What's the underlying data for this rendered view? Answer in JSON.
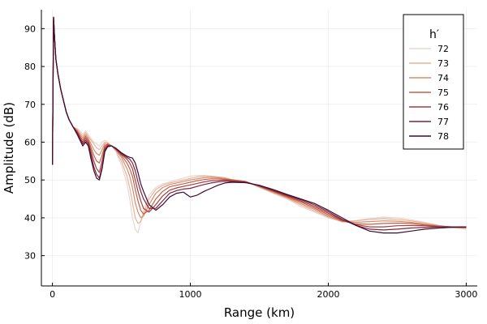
{
  "chart_data": {
    "type": "line",
    "xlabel": "Range (km)",
    "ylabel": "Amplitude (dB)",
    "xlim": [
      -80,
      3080
    ],
    "ylim": [
      22,
      95
    ],
    "xticks": [
      0,
      1000,
      2000,
      3000
    ],
    "yticks": [
      30,
      40,
      50,
      60,
      70,
      80,
      90
    ],
    "grid": true,
    "legend": {
      "title": "h′",
      "placement": "top-right"
    },
    "series": [
      {
        "name": "72",
        "color": "#e8d7cf",
        "x": [
          0,
          8,
          15,
          25,
          40,
          60,
          80,
          100,
          120,
          150,
          180,
          200,
          220,
          240,
          260,
          280,
          300,
          320,
          340,
          360,
          380,
          400,
          430,
          460,
          500,
          540,
          560,
          580,
          600,
          620,
          640,
          660,
          700,
          750,
          800,
          850,
          900,
          950,
          1000,
          1050,
          1100,
          1150,
          1200,
          1250,
          1300,
          1400,
          1500,
          1600,
          1700,
          1800,
          1900,
          2000,
          2100,
          2200,
          2300,
          2400,
          2500,
          2600,
          2700,
          2800,
          2900,
          3000
        ],
        "y": [
          54,
          93,
          88,
          82,
          78,
          74,
          71,
          68,
          66,
          64,
          63.5,
          63,
          62,
          63,
          62,
          61,
          60,
          59.5,
          59,
          60,
          60.5,
          60,
          59,
          57.5,
          54,
          49,
          45,
          40,
          37,
          36,
          39,
          42,
          46,
          48,
          49,
          49.5,
          50,
          50.5,
          51,
          51.2,
          51.2,
          51,
          50.8,
          50.5,
          50,
          49.5,
          48,
          46.5,
          45,
          43,
          41.5,
          40,
          39,
          39.3,
          39.8,
          40.2,
          40,
          39.5,
          38.8,
          38,
          37.4,
          37
        ]
      },
      {
        "name": "73",
        "color": "#e6b49c",
        "x": [
          0,
          8,
          15,
          25,
          40,
          60,
          80,
          100,
          120,
          150,
          180,
          200,
          220,
          240,
          260,
          280,
          300,
          320,
          340,
          360,
          380,
          400,
          430,
          460,
          500,
          540,
          560,
          580,
          600,
          620,
          640,
          660,
          700,
          750,
          800,
          850,
          900,
          950,
          1000,
          1050,
          1100,
          1150,
          1200,
          1250,
          1300,
          1400,
          1500,
          1600,
          1700,
          1800,
          1900,
          2000,
          2100,
          2200,
          2300,
          2400,
          2500,
          2600,
          2700,
          2800,
          2900,
          3000
        ],
        "y": [
          54,
          93,
          88,
          82,
          78,
          74,
          71,
          68,
          66,
          64,
          63.5,
          62.5,
          61.5,
          62.5,
          61.5,
          60.5,
          59.5,
          58.5,
          58,
          59,
          60,
          59.8,
          59,
          57.8,
          55,
          51,
          48,
          44,
          40,
          38.5,
          39,
          41,
          45,
          47.5,
          48.6,
          49.2,
          49.6,
          50,
          50.4,
          50.8,
          51,
          51,
          50.8,
          50.6,
          50.1,
          49.6,
          48.1,
          46.6,
          45.2,
          43.4,
          41.8,
          40.2,
          39,
          39.2,
          39.6,
          39.8,
          39.6,
          39.2,
          38.6,
          38,
          37.5,
          37.2
        ]
      },
      {
        "name": "74",
        "color": "#d98a68",
        "x": [
          0,
          8,
          15,
          25,
          40,
          60,
          80,
          100,
          120,
          150,
          180,
          200,
          220,
          240,
          260,
          280,
          300,
          320,
          340,
          360,
          380,
          400,
          430,
          460,
          500,
          540,
          560,
          580,
          600,
          620,
          640,
          660,
          700,
          750,
          800,
          850,
          900,
          950,
          1000,
          1050,
          1100,
          1150,
          1200,
          1250,
          1300,
          1400,
          1500,
          1600,
          1700,
          1800,
          1900,
          2000,
          2100,
          2200,
          2300,
          2400,
          2500,
          2600,
          2700,
          2800,
          2900,
          3000
        ],
        "y": [
          54,
          93,
          88,
          82,
          78,
          74,
          71,
          68,
          66,
          64,
          63,
          62,
          61,
          62,
          61,
          59.5,
          58,
          57,
          56.5,
          58,
          59.5,
          59.5,
          59,
          58,
          56,
          53,
          51,
          48,
          44,
          41.5,
          40,
          40.5,
          43.5,
          46.5,
          48,
          48.8,
          49.2,
          49.6,
          50,
          50.3,
          50.6,
          50.7,
          50.6,
          50.4,
          50.1,
          49.6,
          48.2,
          46.8,
          45.4,
          43.8,
          42.2,
          40.4,
          39,
          38.8,
          39,
          39.2,
          39.1,
          38.8,
          38.3,
          37.9,
          37.5,
          37.3
        ]
      },
      {
        "name": "75",
        "color": "#c4604a",
        "x": [
          0,
          8,
          15,
          25,
          40,
          60,
          80,
          100,
          120,
          150,
          180,
          200,
          220,
          240,
          260,
          280,
          300,
          320,
          340,
          360,
          380,
          400,
          430,
          460,
          500,
          540,
          560,
          580,
          600,
          620,
          640,
          660,
          700,
          750,
          800,
          850,
          900,
          950,
          1000,
          1050,
          1100,
          1150,
          1200,
          1250,
          1300,
          1400,
          1500,
          1600,
          1700,
          1800,
          1900,
          2000,
          2100,
          2200,
          2300,
          2400,
          2500,
          2600,
          2700,
          2800,
          2900,
          3000
        ],
        "y": [
          54,
          93,
          88,
          82,
          78,
          74,
          71,
          68,
          66,
          64,
          63,
          61.5,
          60.5,
          61.5,
          60.5,
          58.5,
          56.5,
          55,
          54.5,
          56.5,
          59,
          59.5,
          59,
          58,
          56.5,
          54.5,
          53,
          51,
          47.5,
          44.5,
          42,
          41,
          42,
          45,
          47,
          48.2,
          48.6,
          49,
          49.4,
          49.8,
          50.1,
          50.3,
          50.3,
          50.2,
          50,
          49.6,
          48.3,
          47,
          45.6,
          44.2,
          42.6,
          40.8,
          39.2,
          38.4,
          38.3,
          38.5,
          38.6,
          38.5,
          38.1,
          37.8,
          37.6,
          37.5
        ]
      },
      {
        "name": "76",
        "color": "#a63f3c",
        "x": [
          0,
          8,
          15,
          25,
          40,
          60,
          80,
          100,
          120,
          150,
          180,
          200,
          220,
          240,
          260,
          280,
          300,
          320,
          340,
          360,
          380,
          400,
          430,
          460,
          500,
          540,
          560,
          580,
          600,
          620,
          640,
          660,
          700,
          750,
          800,
          850,
          900,
          950,
          1000,
          1050,
          1100,
          1150,
          1200,
          1250,
          1300,
          1400,
          1500,
          1600,
          1700,
          1800,
          1900,
          2000,
          2100,
          2200,
          2300,
          2400,
          2500,
          2600,
          2700,
          2800,
          2900,
          3000
        ],
        "y": [
          54,
          93,
          88,
          82,
          78,
          74,
          71,
          68,
          66,
          64,
          62.5,
          61,
          60,
          61,
          60,
          57.5,
          55,
          53,
          52,
          55,
          58.5,
          59.2,
          59,
          58.2,
          56.8,
          55.5,
          54.5,
          53,
          50,
          47,
          44.5,
          42.5,
          41.5,
          43.5,
          45.8,
          47.3,
          47.9,
          48.3,
          48.7,
          49.1,
          49.5,
          49.8,
          49.9,
          50,
          49.8,
          49.5,
          48.4,
          47.1,
          45.8,
          44.5,
          43,
          41.2,
          39.4,
          38.2,
          37.6,
          37.6,
          37.9,
          38,
          37.9,
          37.7,
          37.6,
          37.6
        ]
      },
      {
        "name": "77",
        "color": "#7c2440",
        "x": [
          0,
          8,
          15,
          25,
          40,
          60,
          80,
          100,
          120,
          150,
          180,
          200,
          220,
          240,
          260,
          280,
          300,
          320,
          340,
          360,
          380,
          400,
          430,
          460,
          500,
          540,
          560,
          580,
          600,
          620,
          640,
          660,
          700,
          750,
          800,
          850,
          900,
          950,
          1000,
          1050,
          1100,
          1150,
          1200,
          1250,
          1300,
          1400,
          1500,
          1600,
          1700,
          1800,
          1900,
          2000,
          2100,
          2200,
          2300,
          2400,
          2500,
          2600,
          2700,
          2800,
          2900,
          3000
        ],
        "y": [
          54,
          93,
          88,
          82,
          78,
          74,
          71,
          68,
          66,
          64,
          62.5,
          61,
          59.5,
          60.5,
          59.5,
          56.5,
          53.5,
          51.5,
          50.5,
          53.5,
          58,
          59,
          59,
          58.3,
          57,
          56,
          55.5,
          54.5,
          52.5,
          49.5,
          47,
          45,
          42.5,
          42.5,
          44.5,
          46.5,
          47.2,
          47.6,
          47.8,
          48.3,
          48.8,
          49.2,
          49.5,
          49.7,
          49.6,
          49.4,
          48.5,
          47.3,
          46,
          44.8,
          43.4,
          41.6,
          39.6,
          38,
          37,
          36.8,
          37,
          37.3,
          37.5,
          37.6,
          37.6,
          37.6
        ]
      },
      {
        "name": "78",
        "color": "#3f0b2e",
        "x": [
          0,
          8,
          15,
          25,
          40,
          60,
          80,
          100,
          120,
          150,
          180,
          200,
          220,
          240,
          260,
          280,
          300,
          320,
          340,
          360,
          380,
          400,
          430,
          460,
          500,
          540,
          560,
          580,
          600,
          620,
          640,
          660,
          700,
          750,
          800,
          850,
          900,
          950,
          1000,
          1050,
          1100,
          1150,
          1200,
          1250,
          1300,
          1400,
          1500,
          1600,
          1700,
          1800,
          1900,
          2000,
          2100,
          2200,
          2300,
          2400,
          2500,
          2600,
          2700,
          2800,
          2900,
          3000
        ],
        "y": [
          54,
          93,
          88,
          82,
          78,
          74,
          71,
          68,
          66,
          64,
          62,
          60.5,
          59,
          60,
          59,
          55.5,
          52.5,
          50.5,
          50,
          53,
          57.5,
          58.8,
          59,
          58.4,
          57.2,
          56.3,
          56,
          55.8,
          54.5,
          52,
          49,
          47,
          43.5,
          42,
          43.5,
          45.5,
          46.5,
          46.8,
          45.5,
          46,
          47,
          47.8,
          48.6,
          49.2,
          49.4,
          49.3,
          48.6,
          47.5,
          46.2,
          45,
          43.8,
          42,
          40,
          38,
          36.5,
          36,
          36,
          36.5,
          37,
          37.3,
          37.5,
          37.6
        ]
      }
    ]
  }
}
